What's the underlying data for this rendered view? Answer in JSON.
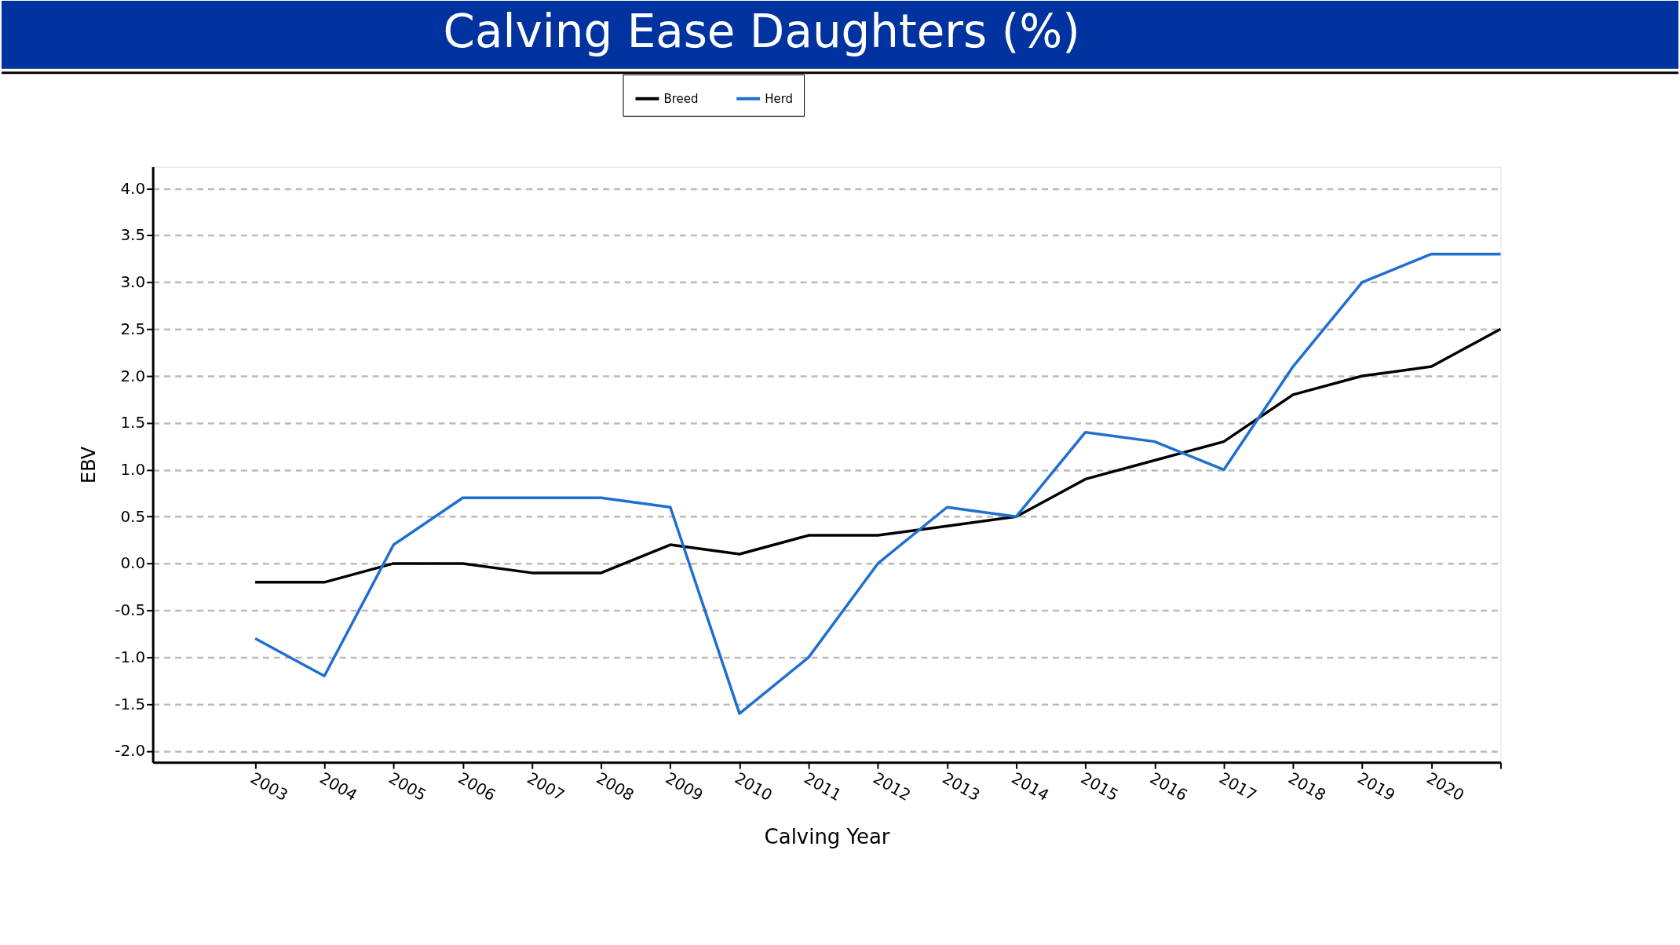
{
  "chart_data": {
    "type": "line",
    "title": "Calving Ease Daughters (%)",
    "xlabel": "Calving Year",
    "ylabel": "EBV",
    "categories": [
      "2003",
      "2004",
      "2005",
      "2006",
      "2007",
      "2008",
      "2009",
      "2010",
      "2011",
      "2012",
      "2013",
      "2014",
      "2015",
      "2016",
      "2017",
      "2018",
      "2019",
      "2020",
      null
    ],
    "series": [
      {
        "name": "Breed",
        "color": "#000000",
        "values": [
          -0.2,
          -0.2,
          0.0,
          0.0,
          -0.1,
          -0.1,
          0.2,
          0.1,
          0.3,
          0.3,
          0.4,
          0.5,
          0.9,
          1.1,
          1.3,
          1.8,
          2.0,
          2.1,
          2.5
        ]
      },
      {
        "name": "Herd",
        "color": "#1f6fd1",
        "values": [
          -0.8,
          -1.2,
          0.2,
          0.7,
          0.7,
          0.7,
          0.6,
          -1.6,
          -1.0,
          0.0,
          0.6,
          0.5,
          1.4,
          1.3,
          1.0,
          2.1,
          3.0,
          3.3,
          3.3
        ]
      }
    ],
    "ylim": [
      -2.12,
      4.23
    ],
    "yticks": [
      {
        "value": -2,
        "label": "-2.0"
      },
      {
        "value": -1.5,
        "label": "-1.5"
      },
      {
        "value": -1,
        "label": "-1.0"
      },
      {
        "value": -0.5,
        "label": "-0.5"
      },
      {
        "value": 0,
        "label": "0.0"
      },
      {
        "value": 0.5,
        "label": "0.5"
      },
      {
        "value": 1,
        "label": "1.0"
      },
      {
        "value": 1.5,
        "label": "1.5"
      },
      {
        "value": 2,
        "label": "2.0"
      },
      {
        "value": 2.5,
        "label": "2.5"
      },
      {
        "value": 3,
        "label": "3.0"
      },
      {
        "value": 3.5,
        "label": "3.5"
      },
      {
        "value": 4,
        "label": "4.0"
      }
    ],
    "grid": "y",
    "legend": "top",
    "marker": "none",
    "line_style": "solid"
  }
}
